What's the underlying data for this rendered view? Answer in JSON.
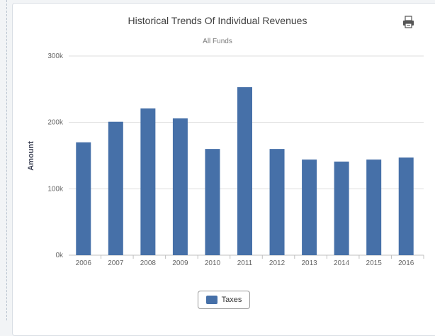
{
  "chart_data": {
    "type": "bar",
    "title": "Historical Trends Of Individual Revenues",
    "subtitle": "All Funds",
    "xlabel": "",
    "ylabel": "Amount",
    "categories": [
      "2006",
      "2007",
      "2008",
      "2009",
      "2010",
      "2011",
      "2012",
      "2013",
      "2014",
      "2015",
      "2016"
    ],
    "series": [
      {
        "name": "Taxes",
        "values": [
          170000,
          201000,
          221000,
          206000,
          160000,
          253000,
          160000,
          144000,
          141000,
          144000,
          147000
        ]
      }
    ],
    "ylim": [
      0,
      300000
    ],
    "yticks": [
      {
        "value": 0,
        "label": "0k"
      },
      {
        "value": 100000,
        "label": "100k"
      },
      {
        "value": 200000,
        "label": "200k"
      },
      {
        "value": 300000,
        "label": "300k"
      }
    ],
    "grid": true,
    "legend_position": "bottom-center",
    "bar_color": "#4670a8"
  },
  "toolbar": {
    "print_icon": "printer-icon"
  }
}
